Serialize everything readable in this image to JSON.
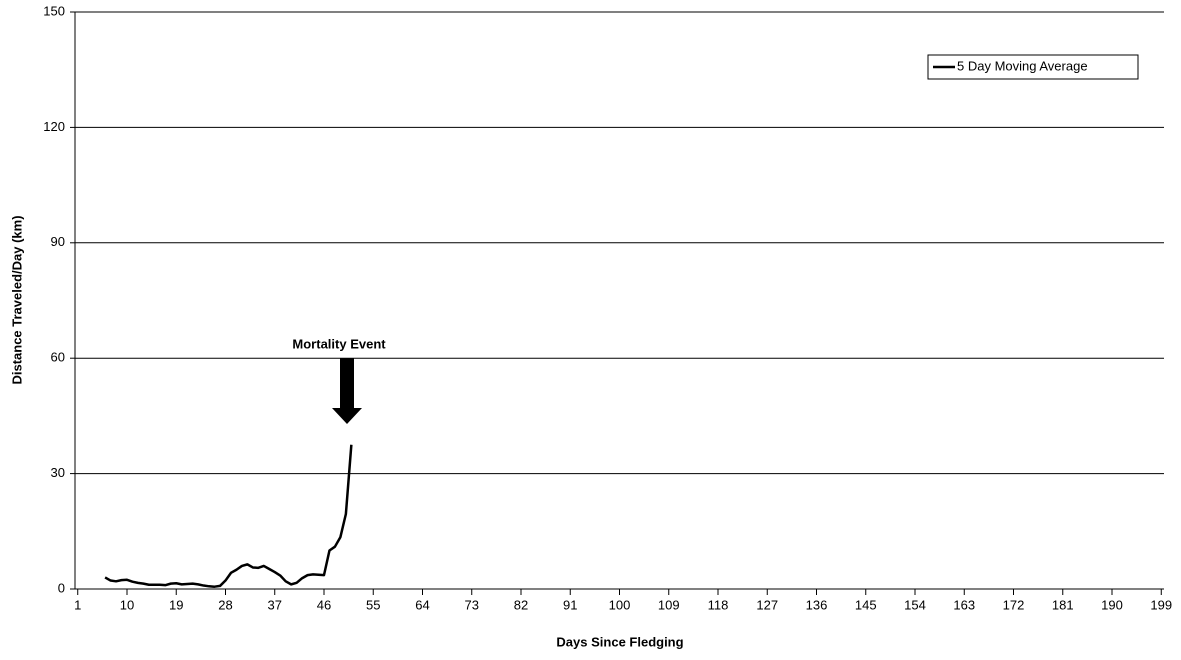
{
  "chart_data": {
    "type": "line",
    "x_label": "Days Since Fledging",
    "y_label": "Distance Traveled/Day (km)",
    "annotation": "Mortality Event",
    "x": [
      6,
      7,
      8,
      9,
      10,
      11,
      12,
      13,
      14,
      15,
      16,
      17,
      18,
      19,
      20,
      21,
      22,
      23,
      24,
      25,
      26,
      27,
      28,
      29,
      30,
      31,
      32,
      33,
      34,
      35,
      36,
      37,
      38,
      39,
      40,
      41,
      42,
      43,
      44,
      45,
      46,
      47,
      48,
      49,
      50,
      51
    ],
    "series": [
      {
        "name": "5 Day Moving Average",
        "color": "#000000",
        "values": [
          3.0,
          2.2,
          2.0,
          2.3,
          2.4,
          1.9,
          1.6,
          1.4,
          1.1,
          1.1,
          1.1,
          1.0,
          1.4,
          1.5,
          1.2,
          1.3,
          1.4,
          1.2,
          0.9,
          0.7,
          0.6,
          0.8,
          2.2,
          4.2,
          5.0,
          6.0,
          6.4,
          5.6,
          5.5,
          6.0,
          5.2,
          4.4,
          3.5,
          2.0,
          1.2,
          1.6,
          2.8,
          3.6,
          3.8,
          3.7,
          3.6,
          10.0,
          11.0,
          13.5,
          19.5,
          37.5
        ]
      }
    ],
    "xlim": [
      0.5,
      199.5
    ],
    "xticks": [
      1,
      10,
      19,
      28,
      37,
      46,
      55,
      64,
      73,
      82,
      91,
      100,
      109,
      118,
      127,
      136,
      145,
      154,
      163,
      172,
      181,
      190,
      199
    ],
    "ylim": [
      0,
      150
    ],
    "yticks": [
      0,
      30,
      60,
      90,
      120,
      150
    ],
    "grid": true,
    "legend": "top-right"
  }
}
